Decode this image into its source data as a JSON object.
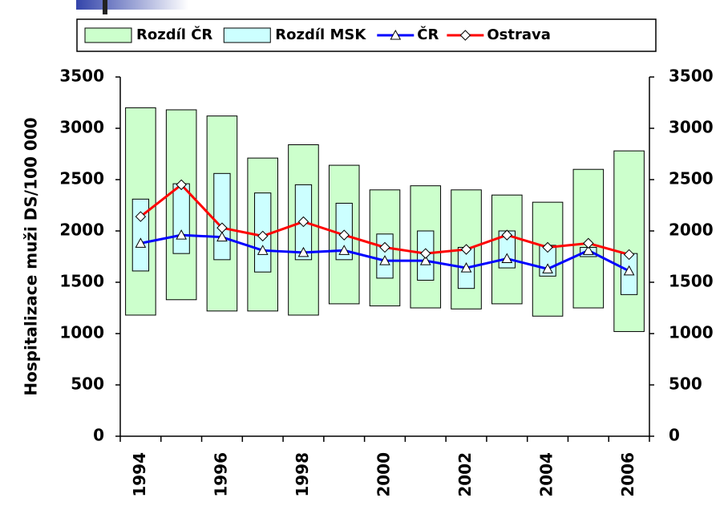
{
  "chart_data": {
    "type": "range-bar-line",
    "y_label": "Hospitalizace muži   DS/100 000",
    "categories": [
      "1994",
      null,
      "1996",
      null,
      "1998",
      null,
      "2000",
      null,
      "2002",
      null,
      "2004",
      null,
      "2006"
    ],
    "range_series": [
      {
        "name": "Rozdíl ČR",
        "color": "#ccffcc",
        "low": [
          1180,
          1330,
          1220,
          1220,
          1180,
          1290,
          1270,
          1250,
          1240,
          1290,
          1170,
          1250,
          1020
        ],
        "high": [
          3200,
          3180,
          3120,
          2710,
          2840,
          2640,
          2400,
          2440,
          2400,
          2350,
          2280,
          2600,
          2780
        ]
      },
      {
        "name": "Rozdíl MSK",
        "color": "#ccffff",
        "low": [
          1610,
          1780,
          1720,
          1600,
          1720,
          1720,
          1540,
          1520,
          1440,
          1640,
          1560,
          1750,
          1380
        ],
        "high": [
          2310,
          2460,
          2560,
          2370,
          2450,
          2270,
          1970,
          2000,
          1840,
          2000,
          1860,
          1840,
          1780
        ]
      }
    ],
    "series": [
      {
        "name": "ČR",
        "color": "#0000ff",
        "marker": "triangle",
        "values": [
          1880,
          1960,
          1940,
          1810,
          1790,
          1810,
          1710,
          1710,
          1640,
          1730,
          1630,
          1810,
          1610
        ]
      },
      {
        "name": "Ostrava",
        "color": "#ff0000",
        "marker": "diamond",
        "values": [
          2140,
          2450,
          2030,
          1950,
          2090,
          1960,
          1840,
          1780,
          1820,
          1960,
          1840,
          1880,
          1770
        ]
      }
    ],
    "ylim": [
      0,
      3500
    ],
    "yticks": [
      0,
      500,
      1000,
      1500,
      2000,
      2500,
      3000,
      3500
    ],
    "y2lim": [
      0,
      3500
    ],
    "y2ticks": [
      0,
      500,
      1000,
      1500,
      2000,
      2500,
      3000,
      3500
    ],
    "legend": "top"
  }
}
